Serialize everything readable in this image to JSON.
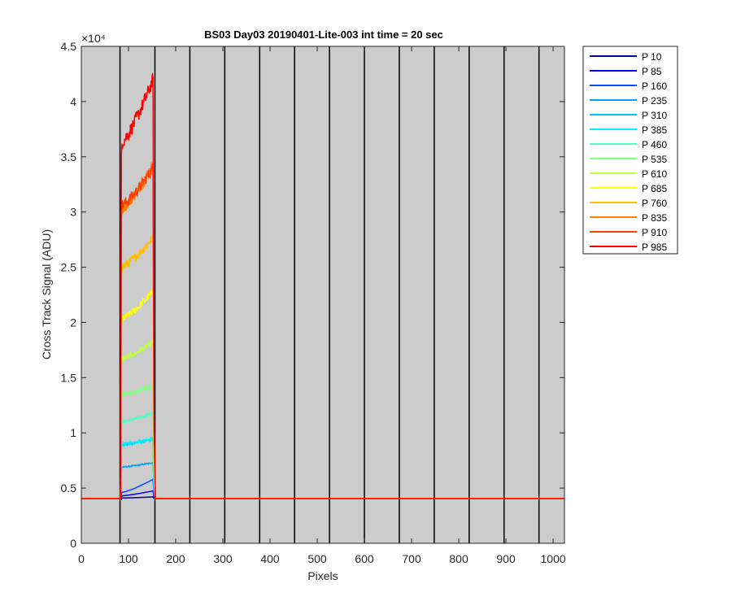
{
  "chart_data": {
    "type": "line",
    "title": "BS03 Day03 20190401-Lite-003 int time = 20 sec",
    "xlabel": "Pixels",
    "ylabel": "Cross Track Signal (ADU)",
    "xlim": [
      0,
      1024
    ],
    "ylim": [
      0,
      45000
    ],
    "y_exponent_label": "×10⁴",
    "xticks": [
      0,
      100,
      200,
      300,
      400,
      500,
      600,
      700,
      800,
      900,
      1000
    ],
    "xtick_labels": [
      "0",
      "100",
      "200",
      "300",
      "400",
      "500",
      "600",
      "700",
      "800",
      "900",
      "1000"
    ],
    "yticks": [
      0,
      5000,
      10000,
      15000,
      20000,
      25000,
      30000,
      35000,
      40000,
      45000
    ],
    "ytick_labels": [
      "0",
      "0.5",
      "1",
      "1.5",
      "2",
      "2.5",
      "3",
      "3.5",
      "4",
      "4.5"
    ],
    "vertical_lines_x": [
      82,
      156,
      230,
      304,
      378,
      452,
      526,
      600,
      674,
      748,
      822,
      896,
      970
    ],
    "background_color": "#cccccc",
    "grid": false,
    "legend_position": "outside-right",
    "baseline": 4050,
    "pulse_x": [
      85,
      155
    ],
    "series": [
      {
        "name": "P 10",
        "color": "#00008f",
        "start": 4100,
        "end": 4200
      },
      {
        "name": "P 85",
        "color": "#0000e6",
        "start": 4300,
        "end": 4750
      },
      {
        "name": "P 160",
        "color": "#0050ff",
        "start": 4600,
        "end": 5800
      },
      {
        "name": "P 235",
        "color": "#00a0ff",
        "start": 6900,
        "end": 7300
      },
      {
        "name": "P 310",
        "color": "#00c8ff",
        "start": 8900,
        "end": 9400
      },
      {
        "name": "P 385",
        "color": "#00f0ff",
        "start": 9000,
        "end": 9500
      },
      {
        "name": "P 460",
        "color": "#50ffc0",
        "start": 11000,
        "end": 11800
      },
      {
        "name": "P 535",
        "color": "#80ff80",
        "start": 13500,
        "end": 14300
      },
      {
        "name": "P 610",
        "color": "#c0ff40",
        "start": 16700,
        "end": 18200
      },
      {
        "name": "P 685",
        "color": "#ffff00",
        "start": 20300,
        "end": 22800
      },
      {
        "name": "P 760",
        "color": "#ffbf00",
        "start": 25000,
        "end": 27700
      },
      {
        "name": "P 835",
        "color": "#ff8000",
        "start": 30300,
        "end": 34300
      },
      {
        "name": "P 910",
        "color": "#ff4000",
        "start": 30600,
        "end": 34000
      },
      {
        "name": "P 985",
        "color": "#ff0000",
        "start": 36300,
        "end": 42000
      }
    ]
  }
}
